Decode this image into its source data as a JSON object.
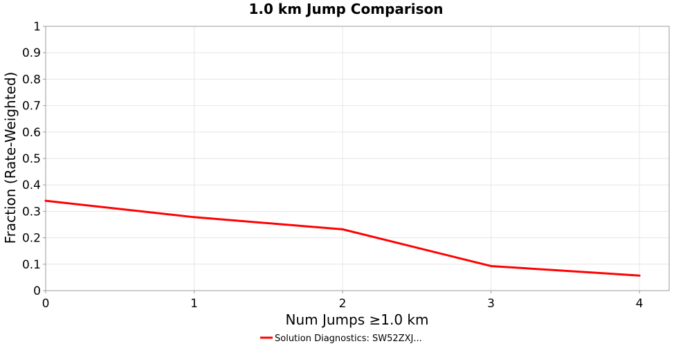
{
  "chart_data": {
    "type": "line",
    "title": "1.0 km Jump Comparison",
    "xlabel": "Num Jumps ≥1.0 km",
    "ylabel": "Fraction (Rate-Weighted)",
    "xlim": [
      0,
      4.2
    ],
    "ylim": [
      0,
      1
    ],
    "x_ticks": [
      0,
      1,
      2,
      3,
      4
    ],
    "y_ticks": [
      0,
      0.1,
      0.2,
      0.3,
      0.4,
      0.5,
      0.6,
      0.7,
      0.8,
      0.9,
      1
    ],
    "x_tick_labels": [
      "0",
      "1",
      "2",
      "3",
      "4"
    ],
    "y_tick_labels": [
      "0",
      "0.1",
      "0.2",
      "0.3",
      "0.4",
      "0.5",
      "0.6",
      "0.7",
      "0.8",
      "0.9",
      "1"
    ],
    "grid": true,
    "legend_position": "bottom-center",
    "series": [
      {
        "name": "Solution Diagnostics: SW52ZXJ...",
        "color": "#ff0000",
        "x": [
          0,
          1,
          2,
          3,
          4
        ],
        "values": [
          0.34,
          0.278,
          0.232,
          0.093,
          0.057
        ]
      }
    ]
  }
}
